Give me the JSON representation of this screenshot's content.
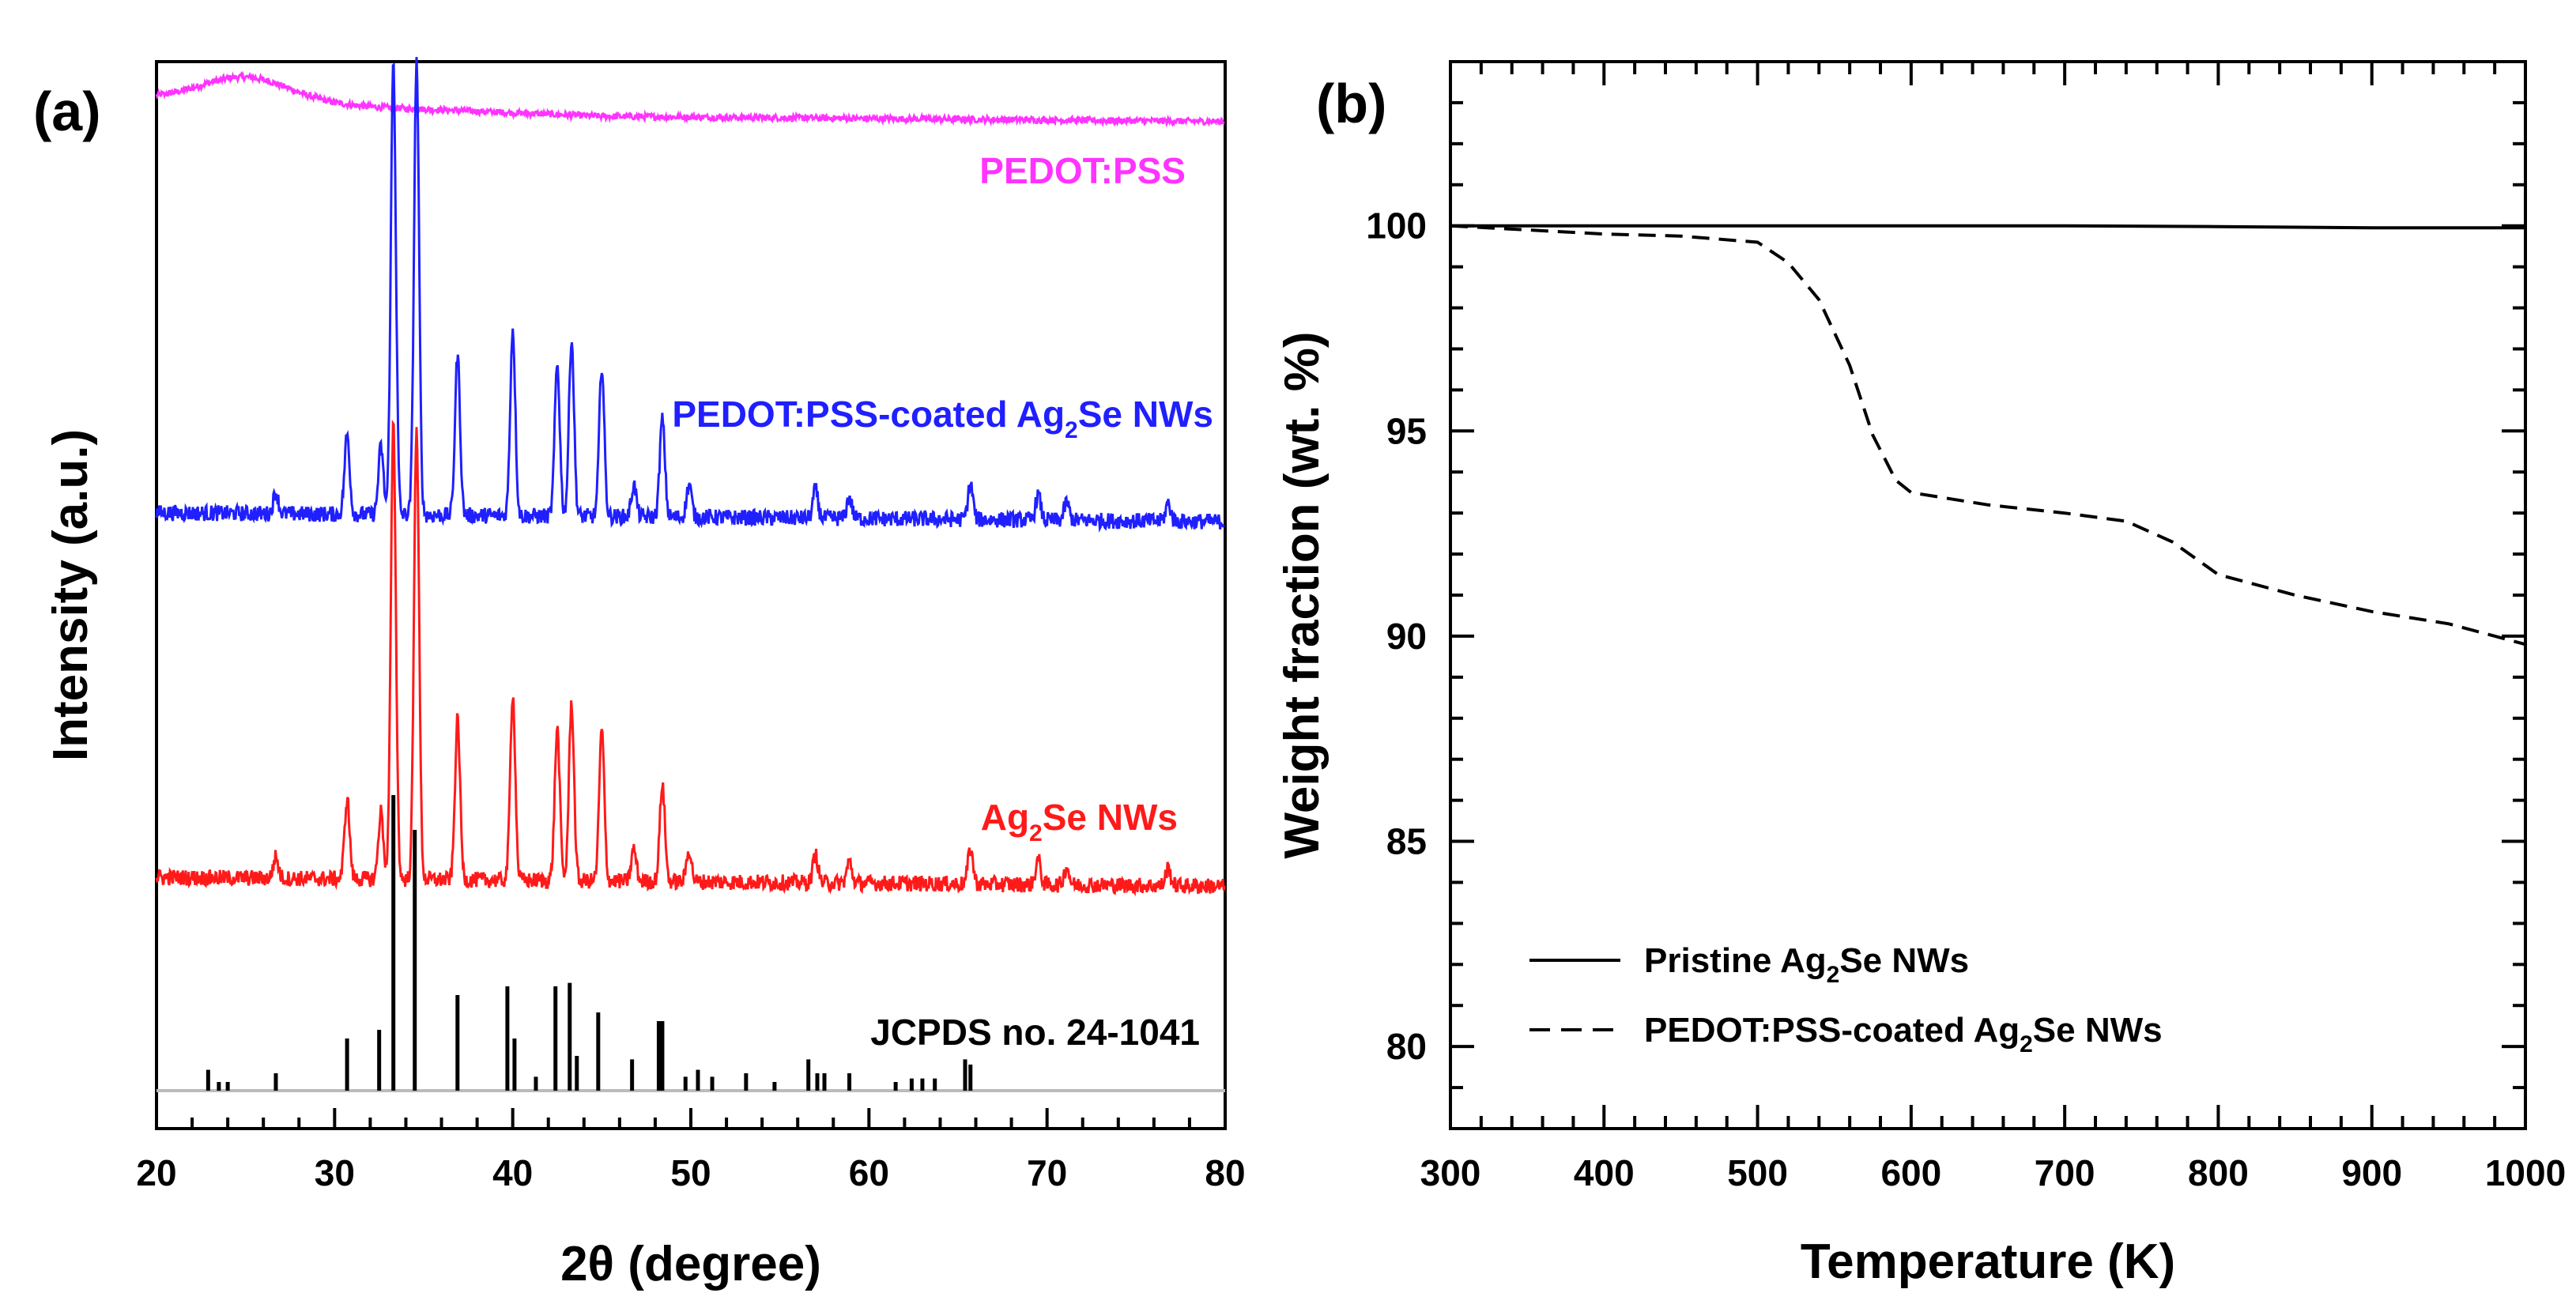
{
  "chart_data": [
    {
      "type": "line",
      "panel_label": "(a)",
      "xlabel": "2θ (degree)",
      "ylabel": "Intensity (a.u.)",
      "xlim": [
        20,
        80
      ],
      "xticks": [
        20,
        30,
        40,
        50,
        60,
        70,
        80
      ],
      "series": [
        {
          "name": "PEDOT:PSS",
          "label_main": "PEDOT:PSS",
          "color": "#ff33ff",
          "baseline": 5.5
        },
        {
          "name": "PEDOT:PSS-coated Ag2Se NWs",
          "label_pre": "PEDOT:PSS-coated Ag",
          "label_sub": "2",
          "label_post": "Se NWs",
          "color": "#1f1fff",
          "baseline": 3.2
        },
        {
          "name": "Ag2Se NWs",
          "label_pre": "Ag",
          "label_sub": "2",
          "label_post": "Se NWs",
          "color": "#ff1a1a",
          "baseline": 1.15
        }
      ],
      "peaks": [
        {
          "pos": 26.7,
          "height": 0.12
        },
        {
          "pos": 30.7,
          "height": 0.45
        },
        {
          "pos": 32.6,
          "height": 0.38
        },
        {
          "pos": 33.3,
          "height": 2.55
        },
        {
          "pos": 34.6,
          "height": 2.55
        },
        {
          "pos": 36.9,
          "height": 0.9
        },
        {
          "pos": 40.0,
          "height": 1.05
        },
        {
          "pos": 42.5,
          "height": 0.85
        },
        {
          "pos": 43.3,
          "height": 1.0
        },
        {
          "pos": 45.0,
          "height": 0.85
        },
        {
          "pos": 46.8,
          "height": 0.18
        },
        {
          "pos": 48.4,
          "height": 0.55
        },
        {
          "pos": 49.9,
          "height": 0.18
        },
        {
          "pos": 57.0,
          "height": 0.16
        },
        {
          "pos": 58.9,
          "height": 0.12
        },
        {
          "pos": 65.7,
          "height": 0.2
        },
        {
          "pos": 69.5,
          "height": 0.14
        },
        {
          "pos": 71.1,
          "height": 0.1
        },
        {
          "pos": 76.8,
          "height": 0.1
        }
      ],
      "reference": {
        "name": "JCPDS no. 24-1041",
        "positions": [
          22.9,
          23.5,
          24.0,
          26.7,
          30.7,
          32.5,
          33.3,
          34.5,
          36.9,
          39.7,
          40.1,
          41.3,
          42.4,
          43.2,
          43.6,
          44.8,
          46.7,
          48.2,
          48.4,
          49.7,
          50.4,
          51.2,
          53.1,
          54.7,
          56.6,
          57.1,
          57.5,
          58.9,
          61.5,
          62.4,
          63.0,
          63.7,
          65.4,
          65.7
        ],
        "heights": [
          0.12,
          0.05,
          0.05,
          0.1,
          0.3,
          0.35,
          1.7,
          1.5,
          0.55,
          0.6,
          0.3,
          0.08,
          0.6,
          0.62,
          0.2,
          0.45,
          0.18,
          0.4,
          0.4,
          0.08,
          0.12,
          0.08,
          0.1,
          0.05,
          0.18,
          0.1,
          0.1,
          0.1,
          0.05,
          0.07,
          0.07,
          0.07,
          0.18,
          0.15
        ]
      }
    },
    {
      "type": "line",
      "panel_label": "(b)",
      "xlabel": "Temperature (K)",
      "ylabel": "Weight fraction (wt. %)",
      "xlim": [
        300,
        1000
      ],
      "ylim": [
        78,
        104
      ],
      "xticks": [
        300,
        400,
        500,
        600,
        700,
        800,
        900,
        1000
      ],
      "yticks": [
        80,
        85,
        90,
        95,
        100
      ],
      "series": [
        {
          "name": "Pristine Ag2Se NWs",
          "label_pre": "Pristine Ag",
          "label_sub": "2",
          "label_post": "Se NWs",
          "style": "solid",
          "x": [
            300,
            400,
            500,
            600,
            700,
            800,
            900,
            1000
          ],
          "y": [
            100.0,
            100.0,
            100.0,
            100.0,
            100.0,
            99.98,
            99.95,
            99.95
          ]
        },
        {
          "name": "PEDOT:PSS-coated Ag2Se NWs",
          "label_pre": "PEDOT:PSS-coated Ag",
          "label_sub": "2",
          "label_post": "Se NWs",
          "style": "dashed",
          "x": [
            300,
            350,
            400,
            450,
            500,
            520,
            540,
            560,
            575,
            590,
            600,
            650,
            700,
            740,
            770,
            800,
            850,
            900,
            950,
            1000
          ],
          "y": [
            100.0,
            99.9,
            99.8,
            99.75,
            99.6,
            99.1,
            98.2,
            96.6,
            94.9,
            93.8,
            93.5,
            93.2,
            93.0,
            92.8,
            92.3,
            91.5,
            91.0,
            90.6,
            90.3,
            89.8
          ]
        }
      ],
      "legend_position": "bottom-left"
    }
  ]
}
